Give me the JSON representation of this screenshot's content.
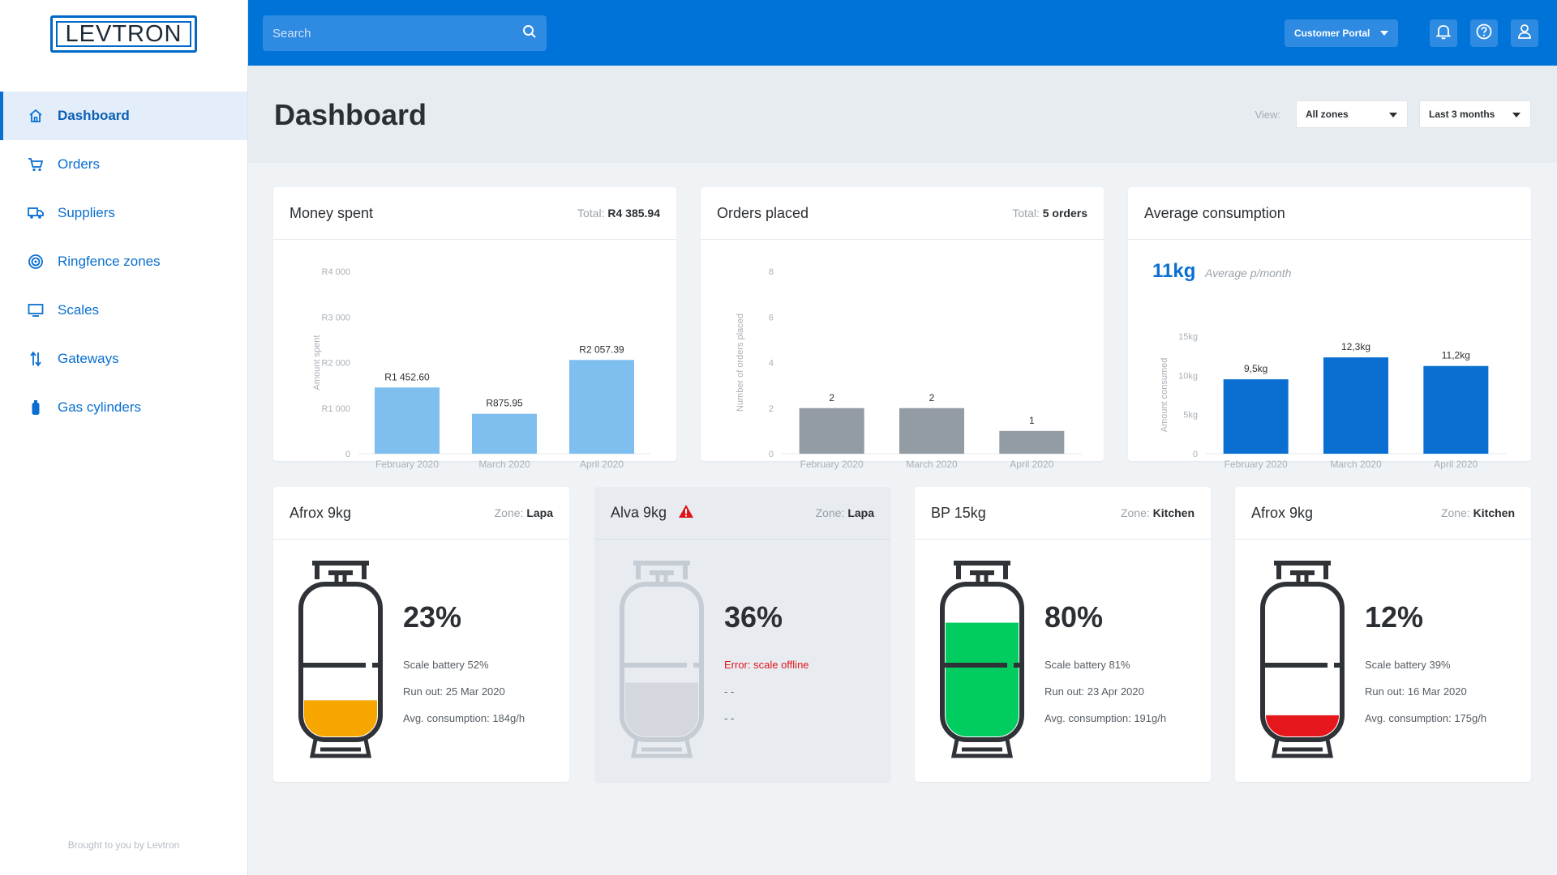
{
  "brand": {
    "logo_text": "LEVTRON",
    "credit": "Brought to you by Levtron"
  },
  "colors": {
    "primary": "#0073d9",
    "chart_light": "#7fbff0",
    "chart_grey": "#939ba3",
    "chart_blue": "#0a6fd1",
    "fill_orange": "#f7a600",
    "fill_green": "#00cc5f",
    "fill_red": "#e5161c",
    "fill_grey": "#d4d8de"
  },
  "sidebar": {
    "items": [
      {
        "label": "Dashboard",
        "icon": "home-icon",
        "active": true
      },
      {
        "label": "Orders",
        "icon": "cart-icon"
      },
      {
        "label": "Suppliers",
        "icon": "truck-icon"
      },
      {
        "label": "Ringfence zones",
        "icon": "ringfence-icon"
      },
      {
        "label": "Scales",
        "icon": "monitor-icon"
      },
      {
        "label": "Gateways",
        "icon": "transfer-icon"
      },
      {
        "label": "Gas cylinders",
        "icon": "cylinder-icon"
      }
    ]
  },
  "topbar": {
    "search_placeholder": "Search",
    "portal_label": "Customer Portal",
    "icons": [
      "bell-icon",
      "help-icon",
      "user-icon"
    ]
  },
  "header": {
    "title": "Dashboard",
    "view_label": "View:",
    "zone_select": "All zones",
    "range_select": "Last 3 months"
  },
  "money": {
    "title": "Money spent",
    "total_label": "Total:",
    "total_value": "R4 385.94",
    "chart_data": {
      "type": "bar",
      "categories": [
        "February 2020",
        "March 2020",
        "April 2020"
      ],
      "values": [
        1452.6,
        875.95,
        2057.39
      ],
      "value_labels": [
        "R1 452.60",
        "R875.95",
        "R2 057.39"
      ],
      "ylabel": "Amount spent",
      "ylim": [
        0,
        4000
      ],
      "yticks": [
        0,
        1000,
        2000,
        3000,
        4000
      ],
      "ytick_labels": [
        "0",
        "R1 000",
        "R2 000",
        "R3 000",
        "R4 000"
      ]
    }
  },
  "orders": {
    "title": "Orders placed",
    "total_label": "Total:",
    "total_value": "5 orders",
    "chart_data": {
      "type": "bar",
      "categories": [
        "February 2020",
        "March 2020",
        "April 2020"
      ],
      "values": [
        2,
        2,
        1
      ],
      "value_labels": [
        "2",
        "2",
        "1"
      ],
      "ylabel": "Number of orders placed",
      "ylim": [
        0,
        8
      ],
      "yticks": [
        0,
        2,
        4,
        6,
        8
      ],
      "ytick_labels": [
        "0",
        "2",
        "4",
        "6",
        "8"
      ]
    }
  },
  "consumption": {
    "title": "Average consumption",
    "big_value": "11kg",
    "big_note": "Average p/month",
    "chart_data": {
      "type": "bar",
      "categories": [
        "February 2020",
        "March 2020",
        "April 2020"
      ],
      "values": [
        9.5,
        12.3,
        11.2
      ],
      "value_labels": [
        "9,5kg",
        "12,3kg",
        "11,2kg"
      ],
      "ylabel": "Amount consumed",
      "ylim": [
        0,
        15
      ],
      "yticks": [
        0,
        5,
        10,
        15
      ],
      "ytick_labels": [
        "0",
        "5kg",
        "10kg",
        "15kg"
      ]
    }
  },
  "cylinders": [
    {
      "name": "Afrox 9kg",
      "zone_label": "Zone:",
      "zone": "Lapa",
      "percent": "23%",
      "level": 0.23,
      "fill": "#f7a600",
      "offline": false,
      "line1": "Scale battery 52%",
      "line2": "Run out: 25 Mar 2020",
      "line3": "Avg. consumption: 184g/h"
    },
    {
      "name": "Alva 9kg",
      "zone_label": "Zone:",
      "zone": "Lapa",
      "percent": "36%",
      "level": 0.36,
      "fill": "#d4d8de",
      "offline": true,
      "warning_icon": "warning-icon",
      "line1": "Error: scale offline",
      "line2": "- -",
      "line3": "- -"
    },
    {
      "name": "BP 15kg",
      "zone_label": "Zone:",
      "zone": "Kitchen",
      "percent": "80%",
      "level": 0.8,
      "fill": "#00cc5f",
      "offline": false,
      "line1": "Scale battery 81%",
      "line2": "Run out: 23 Apr 2020",
      "line3": "Avg. consumption: 191g/h"
    },
    {
      "name": "Afrox 9kg",
      "zone_label": "Zone:",
      "zone": "Kitchen",
      "percent": "12%",
      "level": 0.12,
      "fill": "#e5161c",
      "offline": false,
      "line1": "Scale battery 39%",
      "line2": "Run out: 16 Mar 2020",
      "line3": "Avg. consumption: 175g/h"
    }
  ]
}
